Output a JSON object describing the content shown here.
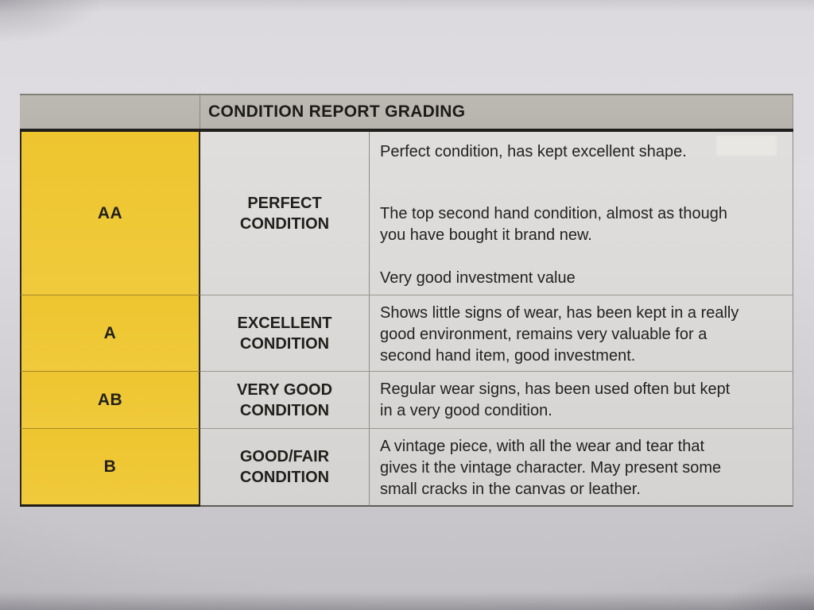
{
  "document": {
    "type": "printed-condition-grading-table",
    "colors": {
      "grade_column_yellow": "#efc837",
      "header_bar_gray": "#b9b6af",
      "paper_background": "#d6d4d8",
      "cell_background": "#dcdad8",
      "text": "#21201d"
    }
  },
  "table": {
    "header_title": "CONDITION REPORT GRADING",
    "rows": [
      {
        "grade": "AA",
        "label": "PERFECT\nCONDITION",
        "desc": [
          [
            "Perfect condition, has kept excellent shape."
          ],
          [
            "The top second hand condition, almost as though",
            "you have bought it brand new."
          ],
          [
            "Very good investment value"
          ]
        ]
      },
      {
        "grade": "A",
        "label": "EXCELLENT\nCONDITION",
        "desc": [
          [
            "Shows little signs of wear, has been kept in a really",
            "good environment, remains very valuable for a",
            "second hand item, good investment."
          ]
        ]
      },
      {
        "grade": "AB",
        "label": "VERY GOOD\nCONDITION",
        "desc": [
          [
            "Regular wear signs, has been used often but kept",
            "in a very good condition."
          ]
        ]
      },
      {
        "grade": "B",
        "label": "GOOD/FAIR\nCONDITION",
        "desc": [
          [
            "A vintage piece, with all the wear and tear that",
            "gives it the vintage character. May present some",
            "small cracks in the canvas or leather."
          ]
        ]
      }
    ]
  }
}
